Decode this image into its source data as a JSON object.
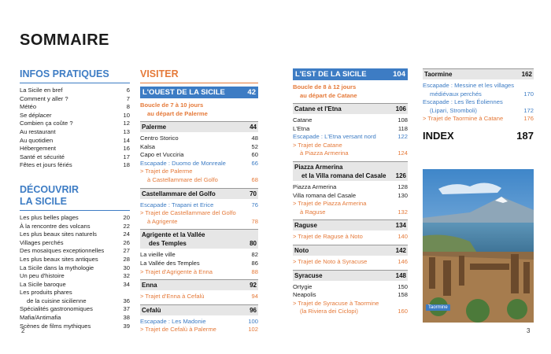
{
  "title": "SOMMAIRE",
  "infos": {
    "heading": "INFOS PRATIQUES",
    "entries": [
      {
        "label": "La Sicile en bref",
        "page": 6
      },
      {
        "label": "Comment y aller ?",
        "page": 7
      },
      {
        "label": "Météo",
        "page": 8
      },
      {
        "label": "Se déplacer",
        "page": 10
      },
      {
        "label": "Combien ça coûte ?",
        "page": 12
      },
      {
        "label": "Au restaurant",
        "page": 13
      },
      {
        "label": "Au quotidien",
        "page": 14
      },
      {
        "label": "Hébergement",
        "page": 16
      },
      {
        "label": "Santé et sécurité",
        "page": 17
      },
      {
        "label": "Fêtes et jours fériés",
        "page": 18
      }
    ]
  },
  "decouvrir": {
    "heading": [
      "DÉCOUVRIR",
      "LA SICILE"
    ],
    "entries": [
      {
        "label": "Les plus belles plages",
        "page": 20
      },
      {
        "label": "À la rencontre des volcans",
        "page": 22
      },
      {
        "label": "Les plus beaux sites naturels",
        "page": 24
      },
      {
        "label": "Villages perchés",
        "page": 26
      },
      {
        "label": "Des mosaïques exceptionnelles",
        "page": 27
      },
      {
        "label": "Les plus beaux sites antiques",
        "page": 28
      },
      {
        "label": "La Sicile dans la mythologie",
        "page": 30
      },
      {
        "label": "Un peu d'histoire",
        "page": 32
      },
      {
        "label": "La Sicile baroque",
        "page": 34
      },
      {
        "label": [
          "Les produits phares",
          "de la cuisine sicilienne"
        ],
        "page": 36
      },
      {
        "label": "Spécialités gastronomiques",
        "page": 37
      },
      {
        "label": "Mafia/Antimafia",
        "page": 38
      },
      {
        "label": "Scènes de films mythiques",
        "page": 39
      }
    ]
  },
  "visiter": {
    "heading": "VISITER",
    "region": {
      "label": "L'OUEST DE LA SICILE",
      "page": 42
    },
    "intro": [
      "Boucle de 7 à 10 jours",
      "au départ de Palerme"
    ],
    "sections": [
      {
        "title": "Palerme",
        "page": 44,
        "entries": [
          {
            "label": "Centro Storico",
            "page": 48
          },
          {
            "label": "Kalsa",
            "page": 52
          },
          {
            "label": "Capo et Vucciria",
            "page": 60
          },
          {
            "label": "Escapade : Duomo de Monreale",
            "page": 66,
            "color": "#3d7cc4"
          },
          {
            "label": [
              "> Trajet de Palerme",
              "à Castellammare del Golfo"
            ],
            "page": 68,
            "color": "#e57a3a"
          }
        ]
      },
      {
        "title": "Castellammare del Golfo",
        "page": 70,
        "entries": [
          {
            "label": "Escapade : Trapani et Erice",
            "page": 76,
            "color": "#3d7cc4"
          },
          {
            "label": [
              "> Trajet de Castellammare del Golfo",
              "à Agrigente"
            ],
            "page": 78,
            "color": "#e57a3a"
          }
        ]
      },
      {
        "title": [
          "Agrigente et la Vallée",
          "des Temples"
        ],
        "page": 80,
        "entries": [
          {
            "label": "La vieille ville",
            "page": 82
          },
          {
            "label": "La Vallée des Temples",
            "page": 86
          },
          {
            "label": "> Trajet d'Agrigente à Enna",
            "page": 88,
            "color": "#e57a3a"
          }
        ]
      },
      {
        "title": "Enna",
        "page": 92,
        "entries": [
          {
            "label": "> Trajet d'Enna à Cefalù",
            "page": 94,
            "color": "#e57a3a"
          }
        ]
      },
      {
        "title": "Cefalù",
        "page": 96,
        "entries": [
          {
            "label": "Escapade : Les Madonie",
            "page": 100,
            "color": "#3d7cc4"
          },
          {
            "label": "> Trajet de Cefalù à Palerme",
            "page": 102,
            "color": "#e57a3a"
          }
        ]
      }
    ]
  },
  "est": {
    "region": {
      "label": "L'EST DE LA SICILE",
      "page": 104
    },
    "intro": [
      "Boucle de 8 à 12 jours",
      "au départ de Catane"
    ],
    "sections": [
      {
        "title": "Catane et l'Etna",
        "page": 106,
        "entries": [
          {
            "label": "Catane",
            "page": 108
          },
          {
            "label": "L'Etna",
            "page": 118
          },
          {
            "label": "Escapade : L'Etna versant nord",
            "page": 122,
            "color": "#3d7cc4"
          },
          {
            "label": [
              "> Trajet de Catane",
              "à Piazza Armerina"
            ],
            "page": 124,
            "color": "#e57a3a"
          }
        ]
      },
      {
        "title": [
          "Piazza Armerina",
          "et la Villa romana del Casale"
        ],
        "page": 126,
        "entries": [
          {
            "label": "Piazza Armerina",
            "page": 128
          },
          {
            "label": "Villa romana del Casale",
            "page": 130
          },
          {
            "label": [
              "> Trajet de Piazza Armerina",
              "à Raguse"
            ],
            "page": 132,
            "color": "#e57a3a"
          }
        ]
      },
      {
        "title": "Raguse",
        "page": 134,
        "entries": [
          {
            "label": "> Trajet de Raguse à Noto",
            "page": 140,
            "color": "#e57a3a"
          }
        ]
      },
      {
        "title": "Noto",
        "page": 142,
        "entries": [
          {
            "label": "> Trajet de Noto à Syracuse",
            "page": 146,
            "color": "#e57a3a"
          }
        ]
      },
      {
        "title": "Syracuse",
        "page": 148,
        "entries": [
          {
            "label": "Ortygie",
            "page": 150
          },
          {
            "label": "Neapolis",
            "page": 158
          },
          {
            "label": [
              "> Trajet de Syracuse à Taormine",
              "(la Riviera dei Ciclopi)"
            ],
            "page": 160,
            "color": "#e57a3a"
          }
        ]
      }
    ]
  },
  "taormine": {
    "sections": [
      {
        "title": "Taormine",
        "page": 162,
        "entries": [
          {
            "label": [
              "Escapade : Messine et les villages",
              "médiévaux perchés"
            ],
            "page": 170,
            "color": "#3d7cc4"
          },
          {
            "label": [
              "Escapade : Les îles Éoliennes",
              "(Lipari, Stromboli)"
            ],
            "page": 172,
            "color": "#3d7cc4"
          },
          {
            "label": "> Trajet de Taormine à Catane",
            "page": 176,
            "color": "#e57a3a"
          }
        ]
      }
    ]
  },
  "index": {
    "label": "INDEX",
    "page": 187
  },
  "photo_caption": "Taormine",
  "page_numbers": [
    2,
    3
  ]
}
